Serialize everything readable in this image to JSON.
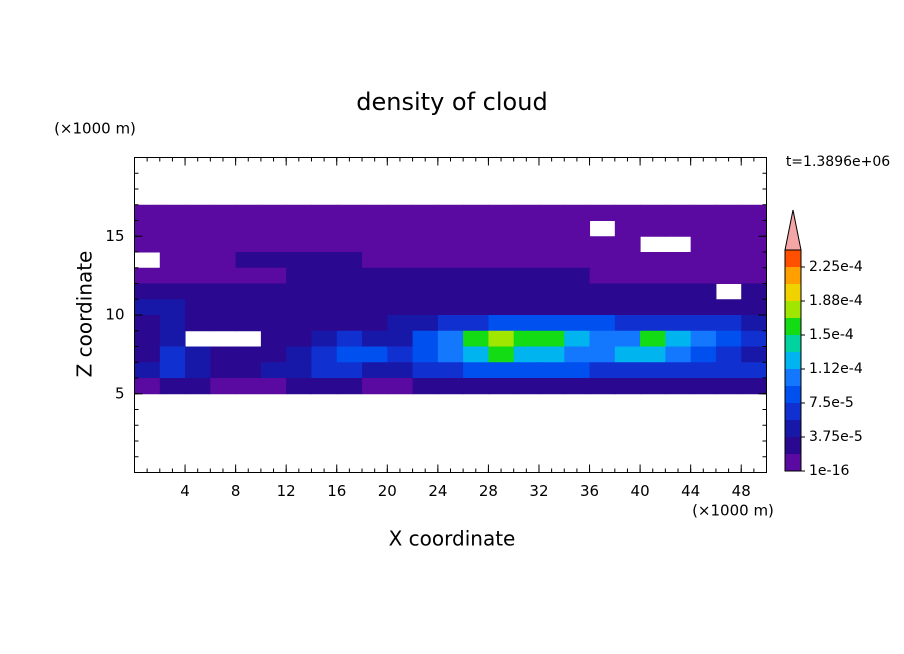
{
  "chart_data": {
    "type": "contour",
    "title": "density of cloud",
    "y_unit_label": "(×1000 m)",
    "x_unit_label": "(×1000 m)",
    "xlabel": "X coordinate",
    "ylabel": "Z coordinate",
    "annotation": "t=1.3896e+06",
    "xlim": [
      0,
      50
    ],
    "ylim": [
      0,
      20
    ],
    "xticks": [
      4,
      8,
      12,
      16,
      20,
      24,
      28,
      32,
      36,
      40,
      44,
      48
    ],
    "yticks": [
      5,
      10,
      15
    ],
    "x": [
      1,
      3,
      5,
      7,
      9,
      11,
      13,
      15,
      17,
      19,
      21,
      23,
      25,
      27,
      29,
      31,
      33,
      35,
      37,
      39,
      41,
      43,
      45,
      47,
      49
    ],
    "z": [
      16.5,
      15.5,
      14.5,
      13.5,
      12.5,
      11.5,
      10.5,
      9.5,
      8.5,
      7.5,
      6.5,
      5.5
    ],
    "values": [
      [
        1e-05,
        1e-05,
        1e-05,
        1e-05,
        1e-05,
        1e-05,
        1e-05,
        1e-05,
        1e-05,
        1e-05,
        1e-05,
        1e-05,
        1e-05,
        1e-05,
        1e-05,
        1e-05,
        1e-05,
        1e-05,
        1e-05,
        1e-05,
        1e-05,
        1e-05,
        1e-05,
        1e-05,
        1e-05
      ],
      [
        1e-05,
        1e-05,
        1e-05,
        1e-05,
        1e-05,
        1e-05,
        1e-05,
        1e-05,
        1e-05,
        1e-05,
        1e-05,
        1e-05,
        1e-05,
        1e-05,
        1e-05,
        1e-05,
        1e-05,
        1e-05,
        null,
        1e-05,
        1e-05,
        1e-05,
        1e-05,
        1e-05,
        1e-05
      ],
      [
        1e-05,
        1e-05,
        1e-05,
        1e-05,
        1e-05,
        1e-05,
        1e-05,
        1e-05,
        1e-05,
        1e-05,
        1e-05,
        1e-05,
        1e-05,
        1e-05,
        1e-05,
        1e-05,
        1e-05,
        1e-05,
        1e-05,
        1e-05,
        null,
        null,
        1e-05,
        1e-05,
        1e-05
      ],
      [
        null,
        1e-05,
        1e-05,
        1e-05,
        3e-05,
        3e-05,
        3e-05,
        3e-05,
        3e-05,
        1e-05,
        1e-05,
        1e-05,
        1e-05,
        1e-05,
        1e-05,
        1e-05,
        1e-05,
        1e-05,
        1e-05,
        1e-05,
        1e-05,
        1e-05,
        1e-05,
        1e-05,
        1e-05
      ],
      [
        1e-05,
        1e-05,
        1e-05,
        1e-05,
        1e-05,
        1e-05,
        3e-05,
        3e-05,
        3e-05,
        3e-05,
        3e-05,
        3e-05,
        3e-05,
        3e-05,
        3e-05,
        3e-05,
        3e-05,
        3e-05,
        1e-05,
        1e-05,
        1e-05,
        1e-05,
        1e-05,
        1e-05,
        1e-05
      ],
      [
        3e-05,
        3e-05,
        3e-05,
        3e-05,
        3e-05,
        3e-05,
        3e-05,
        3e-05,
        3e-05,
        3e-05,
        3e-05,
        3e-05,
        3e-05,
        3e-05,
        3e-05,
        3e-05,
        3e-05,
        3e-05,
        3e-05,
        3e-05,
        3e-05,
        3e-05,
        3e-05,
        null,
        3e-05
      ],
      [
        5e-05,
        5e-05,
        3e-05,
        3e-05,
        3e-05,
        3e-05,
        3e-05,
        3e-05,
        3e-05,
        3e-05,
        3e-05,
        3e-05,
        3e-05,
        3e-05,
        3e-05,
        3e-05,
        3e-05,
        3e-05,
        3e-05,
        3e-05,
        3e-05,
        3e-05,
        3e-05,
        3e-05,
        3e-05
      ],
      [
        3e-05,
        5e-05,
        3e-05,
        3e-05,
        3e-05,
        3e-05,
        3e-05,
        3e-05,
        3e-05,
        3e-05,
        5e-05,
        5e-05,
        7e-05,
        7e-05,
        9e-05,
        9e-05,
        9e-05,
        9e-05,
        9e-05,
        7e-05,
        7e-05,
        7e-05,
        7e-05,
        7e-05,
        5e-05
      ],
      [
        3e-05,
        5e-05,
        null,
        null,
        null,
        3e-05,
        3e-05,
        5e-05,
        7e-05,
        5e-05,
        5e-05,
        9e-05,
        0.00011,
        0.00015,
        0.00017,
        0.00015,
        0.00015,
        0.00013,
        0.00011,
        0.00011,
        0.00015,
        0.00013,
        0.00011,
        9e-05,
        7e-05
      ],
      [
        3e-05,
        7e-05,
        5e-05,
        3e-05,
        3e-05,
        3e-05,
        5e-05,
        7e-05,
        9e-05,
        9e-05,
        7e-05,
        9e-05,
        0.00011,
        0.00013,
        0.00015,
        0.00013,
        0.00013,
        0.00011,
        0.00011,
        0.00013,
        0.00013,
        0.00011,
        9e-05,
        7e-05,
        5e-05
      ],
      [
        5e-05,
        7e-05,
        5e-05,
        3e-05,
        3e-05,
        5e-05,
        5e-05,
        7e-05,
        7e-05,
        5e-05,
        5e-05,
        7e-05,
        7e-05,
        9e-05,
        9e-05,
        9e-05,
        9e-05,
        9e-05,
        7e-05,
        7e-05,
        7e-05,
        7e-05,
        7e-05,
        7e-05,
        7e-05
      ],
      [
        1e-05,
        3e-05,
        3e-05,
        1e-05,
        1e-05,
        1e-05,
        3e-05,
        3e-05,
        3e-05,
        1e-05,
        1e-05,
        3e-05,
        3e-05,
        3e-05,
        3e-05,
        3e-05,
        3e-05,
        3e-05,
        3e-05,
        3e-05,
        3e-05,
        3e-05,
        3e-05,
        3e-05,
        3e-05
      ]
    ],
    "levels": [
      1e-16,
      1.875e-05,
      3.75e-05,
      5.625e-05,
      7.5e-05,
      9.375e-05,
      0.0001125,
      0.00013125,
      0.00015,
      0.00016875,
      0.0001875,
      0.00020625,
      0.000225,
      0.00024375
    ],
    "colors": [
      "#5a0aa0",
      "#2a0890",
      "#1818a8",
      "#1030d0",
      "#0050f0",
      "#1478ff",
      "#00b4f0",
      "#00d2a0",
      "#14dc14",
      "#a0e600",
      "#f0d200",
      "#ffa000",
      "#ff5000"
    ],
    "over_color": "#f4a6a6",
    "colorbar_ticks": [
      {
        "value": 1e-16,
        "label": "1e-16"
      },
      {
        "value": 3.75e-05,
        "label": "3.75e-5"
      },
      {
        "value": 7.5e-05,
        "label": "7.5e-5"
      },
      {
        "value": 0.0001125,
        "label": "1.12e-4"
      },
      {
        "value": 0.00015,
        "label": "1.5e-4"
      },
      {
        "value": 0.0001875,
        "label": "1.88e-4"
      },
      {
        "value": 0.000225,
        "label": "2.25e-4"
      }
    ]
  }
}
